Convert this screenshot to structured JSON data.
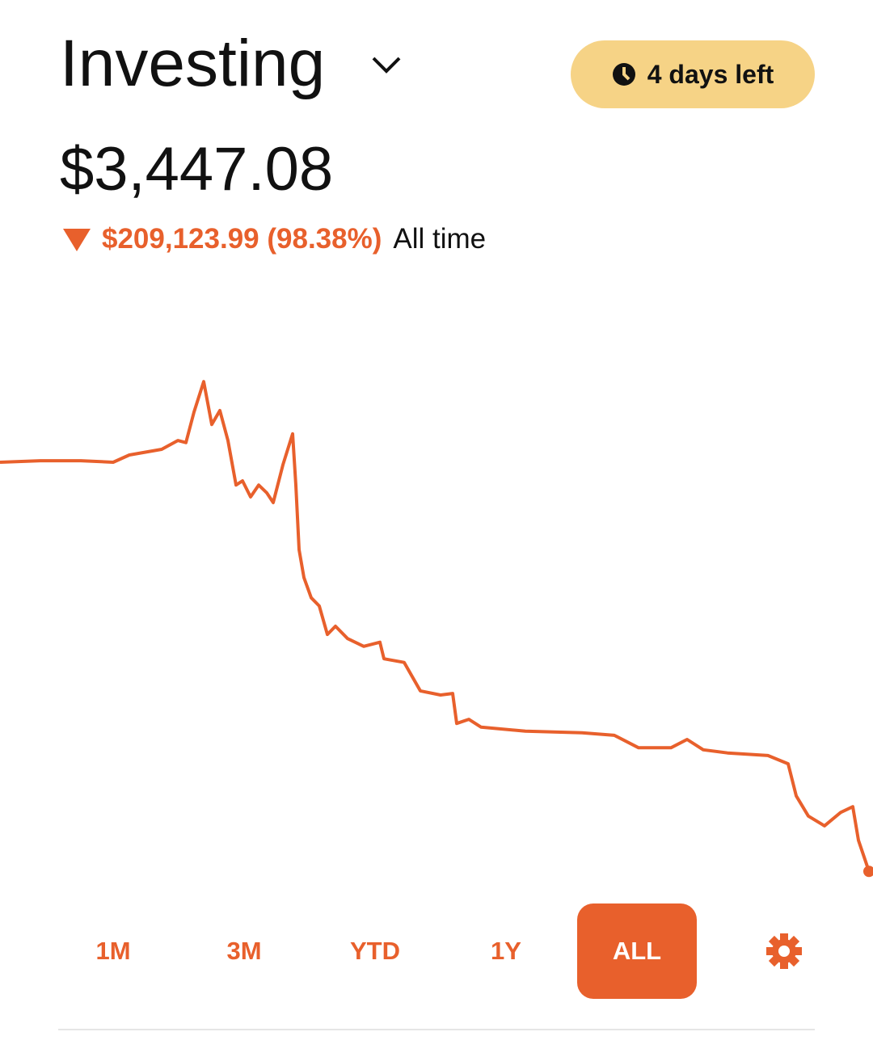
{
  "header": {
    "title": "Investing",
    "badge": "4 days left",
    "balance": "$3,447.08",
    "change": "$209,123.99 (98.38%)",
    "period": "All time"
  },
  "ranges": [
    "1M",
    "3M",
    "YTD",
    "1Y",
    "ALL"
  ],
  "chart_data": {
    "type": "line",
    "color": "#e8602c",
    "x": [
      0,
      50,
      100,
      140,
      160,
      200,
      220,
      230,
      240,
      252,
      262,
      272,
      282,
      292,
      300,
      310,
      320,
      330,
      338,
      350,
      362,
      366,
      370,
      376,
      385,
      395,
      405,
      415,
      430,
      450,
      470,
      475,
      500,
      520,
      545,
      560,
      565,
      580,
      595,
      650,
      720,
      760,
      790,
      830,
      850,
      870,
      900,
      950,
      975,
      985,
      1000,
      1020,
      1040,
      1055,
      1062,
      1075
    ],
    "values": [
      82.5,
      82.8,
      82.8,
      82.5,
      83.9,
      85,
      86.7,
      86.3,
      92.2,
      98.1,
      89.8,
      92.5,
      86.7,
      78.1,
      78.9,
      75.8,
      78.1,
      76.6,
      74.7,
      82,
      88,
      78.1,
      65.6,
      60.2,
      56.3,
      54.7,
      49.2,
      50.8,
      48.4,
      46.9,
      47.7,
      44.5,
      43.8,
      38.3,
      37.5,
      37.8,
      32,
      32.8,
      31.3,
      30.5,
      30.2,
      29.7,
      27.3,
      27.3,
      28.9,
      26.9,
      26.3,
      25.8,
      24.2,
      18,
      14.1,
      12.2,
      14.8,
      15.9,
      9.4,
      3.4
    ],
    "xlim": [
      0,
      1075
    ],
    "ylim": [
      0,
      100
    ]
  }
}
